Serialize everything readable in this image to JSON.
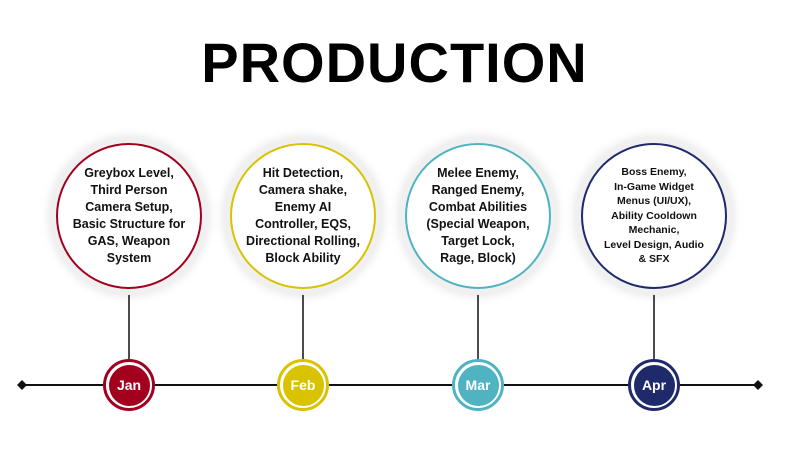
{
  "title": "PRODUCTION",
  "milestones": [
    {
      "month": "Jan",
      "color": "#a3001e",
      "text": [
        "Greybox Level,",
        "Third Person",
        "Camera Setup,",
        "Basic Structure for",
        "GAS, Weapon",
        "System"
      ]
    },
    {
      "month": "Feb",
      "color": "#d9c200",
      "text": [
        "Hit Detection,",
        "Camera shake,",
        "Enemy AI",
        "Controller, EQS,",
        "Directional Rolling,",
        "Block Ability"
      ]
    },
    {
      "month": "Mar",
      "color": "#4fb3c2",
      "text": [
        "Melee Enemy,",
        "Ranged Enemy,",
        "Combat Abilities",
        "(Special Weapon,",
        "Target Lock,",
        "Rage, Block)"
      ]
    },
    {
      "month": "Apr",
      "color": "#1f2a6b",
      "text": [
        "Boss Enemy,",
        "In-Game Widget",
        "Menus (UI/UX),",
        "Ability Cooldown",
        "Mechanic,",
        "Level Design, Audio",
        "& SFX"
      ]
    }
  ]
}
